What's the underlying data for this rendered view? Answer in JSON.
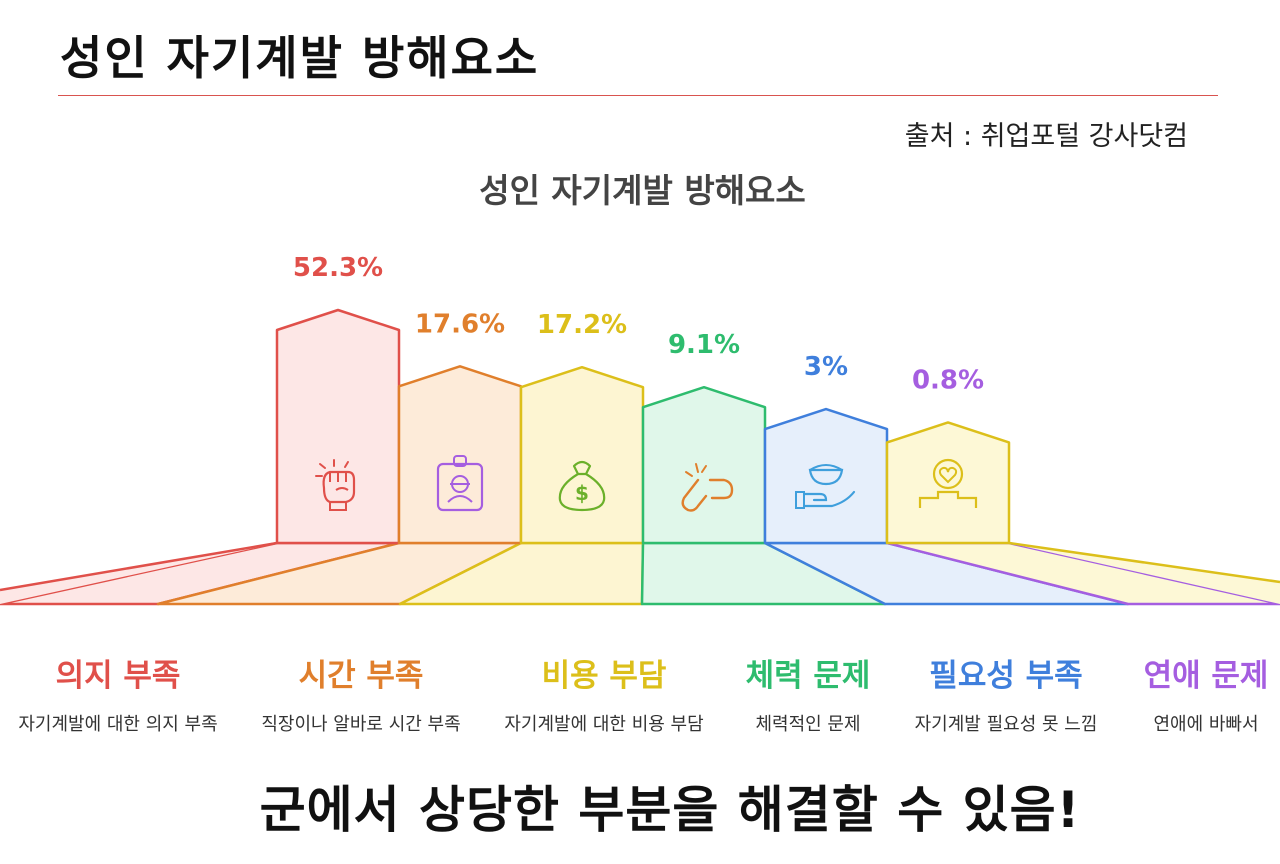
{
  "header": {
    "title": "성인 자기계발 방해요소",
    "source": "출처 : 취업포털 강사닷컴"
  },
  "chart_data": {
    "type": "bar",
    "title": "성인 자기계발 방해요소",
    "categories": [
      "의지 부족",
      "시간 부족",
      "비용 부담",
      "체력 문제",
      "필요성 부족",
      "연애 문제"
    ],
    "values": [
      52.3,
      17.6,
      17.2,
      9.1,
      3,
      0.8
    ],
    "value_labels": [
      "52.3%",
      "17.6%",
      "17.2%",
      "9.1%",
      "3%",
      "0.8%"
    ],
    "descriptions": [
      "자기계발에 대한 의지 부족",
      "직장이나 알바로 시간 부족",
      "자기계발에 대한 비용 부담",
      "체력적인 문제",
      "자기계발 필요성 못 느낌",
      "연애에 바빠서"
    ],
    "icons": [
      "fist-icon",
      "id-badge-icon",
      "money-bag-icon",
      "broken-link-icon",
      "hand-bowl-icon",
      "heart-podium-icon"
    ],
    "colors": [
      "#e0504a",
      "#e07f2c",
      "#dcbf1a",
      "#2ebc6e",
      "#3f7fdc",
      "#a55ee0"
    ],
    "fills": [
      "#fde7e6",
      "#fdebd9",
      "#fdf5d2",
      "#e0f7ea",
      "#e6effb",
      "#fdf8d6"
    ],
    "grid": false,
    "legend": "none"
  },
  "footer": {
    "banner": "군에서 상당한 부분을 해결할 수 있음!"
  }
}
